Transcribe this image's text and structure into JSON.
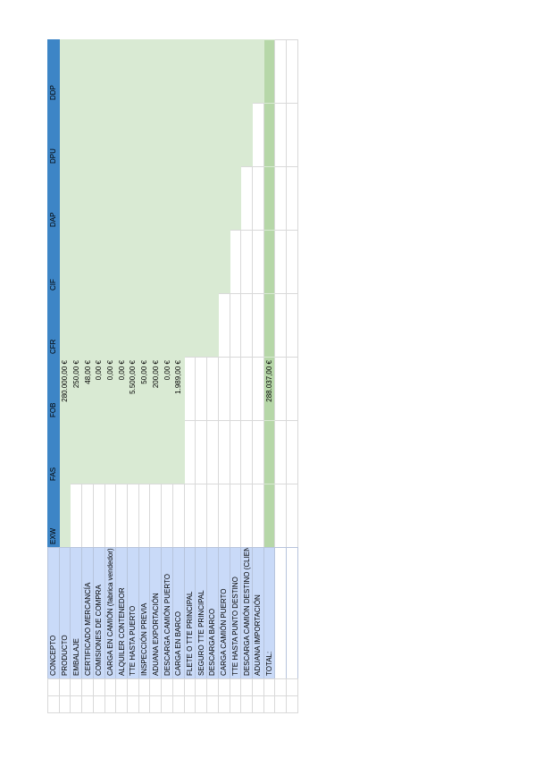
{
  "headers": [
    "CONCEPTO",
    "EXW",
    "FAS",
    "FOB",
    "CFR",
    "CIF",
    "DAP",
    "DPU",
    "DDP"
  ],
  "rows": [
    {
      "concept": "PRODUCTO",
      "fob": "280.000,00 €"
    },
    {
      "concept": "EMBALAJE",
      "fob": "250,00 €"
    },
    {
      "concept": "CERTIFICADO MERCANCÍA",
      "fob": "48,00 €"
    },
    {
      "concept": "COMISIONES DE COMPRA",
      "fob": "0,00 €"
    },
    {
      "concept": "CARGA EN CAMIÓN (fabrica vendedor)",
      "fob": "0,00 €"
    },
    {
      "concept": "ALQUILER CONTENEDOR",
      "fob": "0,00 €"
    },
    {
      "concept": "TTE HASTA PUERTO",
      "fob": "5.500,00 €"
    },
    {
      "concept": "INSPECCIÓN PREVIA",
      "fob": "50,00 €"
    },
    {
      "concept": "ADUANA EXPORTACIÓN",
      "fob": "200,00 €"
    },
    {
      "concept": "DESCARGA CAMIÓN PUERTO",
      "fob": "0,00 €"
    },
    {
      "concept": "CARGA EN BARCO",
      "fob": "1.989,00 €"
    },
    {
      "concept": "FLETE O TTE PRINCIPAL",
      "fob": ""
    },
    {
      "concept": "SEGURO TTE PRINCIPAL",
      "fob": ""
    },
    {
      "concept": "DESCARGA BARCO",
      "fob": ""
    },
    {
      "concept": "CARGA CAMIÓN PUERTO",
      "fob": ""
    },
    {
      "concept": "TTE HASTA PUNTO DESTINO",
      "fob": ""
    },
    {
      "concept": "DESCARGA CAMIÓN DESTINO (CLIENTE)",
      "fob": ""
    },
    {
      "concept": "ADUANA IMPORTACIÓN",
      "fob": ""
    }
  ],
  "total": {
    "label": "TOTAL:",
    "fob": "288.037,00 €"
  }
}
